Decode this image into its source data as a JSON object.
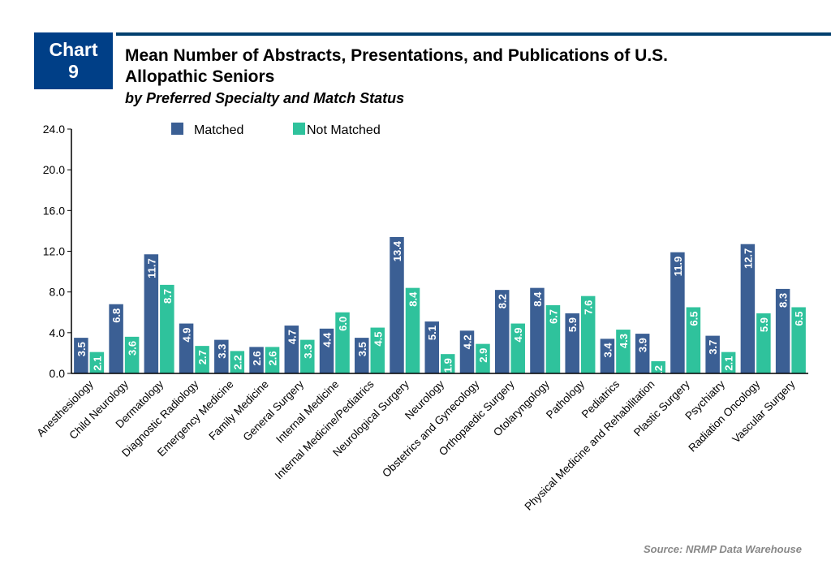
{
  "header": {
    "badge_line1": "Chart",
    "badge_line2": "9",
    "title_line1": "Mean Number of Abstracts, Presentations, and Publications of U.S.",
    "title_line2": "Allopathic Seniors",
    "subtitle": "by Preferred Specialty and Match Status"
  },
  "source": "Source: NRMP Data Warehouse",
  "chart_data": {
    "type": "bar",
    "ylim": [
      0,
      24
    ],
    "yticks": [
      "0.0",
      "4.0",
      "8.0",
      "12.0",
      "16.0",
      "20.0",
      "24.0"
    ],
    "legend_position": "top",
    "grid": false,
    "categories": [
      "Anesthesiology",
      "Child Neurology",
      "Dermatology",
      "Diagnostic Radiology",
      "Emergency Medicine",
      "Family Medicine",
      "General Surgery",
      "Internal Medicine",
      "Internal Medicine/Pediatrics",
      "Neurological Surgery",
      "Neurology",
      "Obstetrics and Gynecology",
      "Orthopaedic Surgery",
      "Otolaryngology",
      "Pathology",
      "Pediatrics",
      "Physical Medicine and Rehabilitation",
      "Plastic Surgery",
      "Psychiatry",
      "Radiation Oncology",
      "Vascular Surgery"
    ],
    "series": [
      {
        "name": "Matched",
        "color": "#3b5f94",
        "values": [
          3.5,
          6.8,
          11.7,
          4.9,
          3.3,
          2.6,
          4.7,
          4.4,
          3.5,
          13.4,
          5.1,
          4.2,
          8.2,
          8.4,
          5.9,
          3.4,
          3.9,
          11.9,
          3.7,
          12.7,
          8.3
        ]
      },
      {
        "name": "Not Matched",
        "color": "#2fc29c",
        "values": [
          2.1,
          3.6,
          8.7,
          2.7,
          2.2,
          2.6,
          3.3,
          6.0,
          4.5,
          8.4,
          1.9,
          2.9,
          4.9,
          6.7,
          7.6,
          4.3,
          1.2,
          6.5,
          2.1,
          5.9,
          6.5
        ]
      }
    ]
  }
}
